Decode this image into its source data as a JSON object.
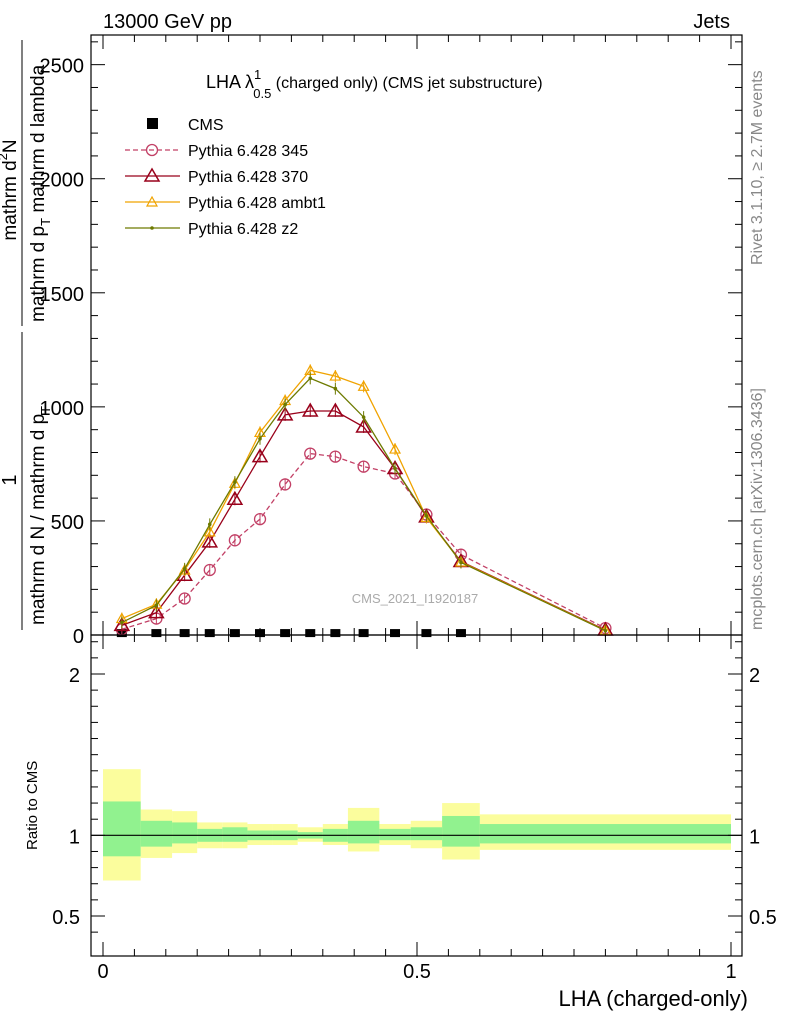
{
  "header": {
    "energy": "13000 GeV pp",
    "process": "Jets",
    "side_rivet": "Rivet 3.1.10, ≥ 2.7M events",
    "side_arxiv": "mcplots.cern.ch [arXiv:1306.3436]",
    "watermark": "CMS_2021_I1920187"
  },
  "title": {
    "prefix": "LHA λ",
    "sup": "1",
    "sub": "0.5",
    "suffix": " (charged only) (CMS jet substructure)"
  },
  "ylabel": {
    "frac1": "1",
    "frac1_den": "mathrm d N / mathrm d p",
    "frac1_den_sub": "T",
    "frac2_num": "mathrm d",
    "frac2_num_sup": "2",
    "frac2_num_tail": "N",
    "frac2_den": "mathrm d p",
    "frac2_den_sub": "T",
    "frac2_den_tail": " mathrm d lambda"
  },
  "ratio_ylabel": "Ratio to CMS",
  "xlabel": "LHA (charged-only)",
  "chart_data": [
    {
      "type": "line",
      "panel": "main",
      "xlim": [
        -0.03,
        1.02
      ],
      "ylim": [
        0,
        2630
      ],
      "yticks": [
        {
          "v": 0,
          "label": "0"
        },
        {
          "v": 500,
          "label": "500"
        },
        {
          "v": 1000,
          "label": "1000"
        },
        {
          "v": 1500,
          "label": "1500"
        },
        {
          "v": 2000,
          "label": "2000"
        },
        {
          "v": 2500,
          "label": "2500"
        }
      ],
      "x": [
        0.03,
        0.085,
        0.13,
        0.17,
        0.21,
        0.25,
        0.29,
        0.33,
        0.37,
        0.415,
        0.465,
        0.515,
        0.57,
        0.8
      ],
      "series": [
        {
          "name": "CMS",
          "color": "#000000",
          "style": "data",
          "x": [
            0.03,
            0.085,
            0.13,
            0.17,
            0.21,
            0.25,
            0.29,
            0.33,
            0.37,
            0.415,
            0.465,
            0.515,
            0.57
          ],
          "values": [
            4,
            4,
            4,
            4,
            4,
            4,
            4,
            4,
            4,
            4,
            4,
            4,
            4
          ]
        },
        {
          "name": "Pythia 6.428 345",
          "color": "#c24066",
          "style": "dashed",
          "marker": "circle",
          "values": [
            25,
            72,
            160,
            285,
            415,
            508,
            660,
            795,
            782,
            738,
            708,
            528,
            352,
            30
          ]
        },
        {
          "name": "Pythia 6.428 370",
          "color": "#99001a",
          "style": "solid",
          "marker": "triangle",
          "values": [
            42,
            98,
            262,
            408,
            595,
            782,
            965,
            982,
            982,
            912,
            730,
            518,
            322,
            22
          ]
        },
        {
          "name": "Pythia 6.428 ambt1",
          "color": "#f0a300",
          "style": "solid",
          "marker": "triangle-small",
          "values": [
            72,
            135,
            285,
            452,
            665,
            888,
            1028,
            1160,
            1135,
            1090,
            815,
            515,
            320,
            20
          ]
        },
        {
          "name": "Pythia 6.428 z2",
          "color": "#6d7a00",
          "style": "solid",
          "marker": "dot",
          "values": [
            55,
            130,
            290,
            485,
            670,
            860,
            1010,
            1125,
            1080,
            955,
            730,
            522,
            318,
            19
          ]
        }
      ]
    },
    {
      "type": "area",
      "panel": "ratio",
      "xlim": [
        -0.03,
        1.02
      ],
      "ylim": [
        0.33,
        2.25
      ],
      "yticks": [
        {
          "v": 0.5,
          "label": "0.5"
        },
        {
          "v": 1,
          "label": "1"
        },
        {
          "v": 2,
          "label": "2"
        }
      ],
      "xticks": [
        {
          "v": 0,
          "label": "0"
        },
        {
          "v": 0.5,
          "label": "0.5"
        },
        {
          "v": 1,
          "label": "1"
        }
      ],
      "bins": [
        {
          "x0": 0.0,
          "x1": 0.06,
          "green": [
            0.87,
            1.21
          ],
          "yellow": [
            0.72,
            1.41
          ]
        },
        {
          "x0": 0.06,
          "x1": 0.11,
          "green": [
            0.93,
            1.09
          ],
          "yellow": [
            0.86,
            1.16
          ]
        },
        {
          "x0": 0.11,
          "x1": 0.15,
          "green": [
            0.95,
            1.08
          ],
          "yellow": [
            0.89,
            1.15
          ]
        },
        {
          "x0": 0.15,
          "x1": 0.19,
          "green": [
            0.96,
            1.04
          ],
          "yellow": [
            0.92,
            1.08
          ]
        },
        {
          "x0": 0.19,
          "x1": 0.23,
          "green": [
            0.96,
            1.05
          ],
          "yellow": [
            0.92,
            1.08
          ]
        },
        {
          "x0": 0.23,
          "x1": 0.27,
          "green": [
            0.97,
            1.03
          ],
          "yellow": [
            0.94,
            1.07
          ]
        },
        {
          "x0": 0.27,
          "x1": 0.31,
          "green": [
            0.97,
            1.03
          ],
          "yellow": [
            0.94,
            1.07
          ]
        },
        {
          "x0": 0.31,
          "x1": 0.35,
          "green": [
            0.98,
            1.02
          ],
          "yellow": [
            0.96,
            1.05
          ]
        },
        {
          "x0": 0.35,
          "x1": 0.39,
          "green": [
            0.96,
            1.04
          ],
          "yellow": [
            0.94,
            1.07
          ]
        },
        {
          "x0": 0.39,
          "x1": 0.44,
          "green": [
            0.95,
            1.09
          ],
          "yellow": [
            0.9,
            1.17
          ]
        },
        {
          "x0": 0.44,
          "x1": 0.49,
          "green": [
            0.97,
            1.04
          ],
          "yellow": [
            0.94,
            1.07
          ]
        },
        {
          "x0": 0.49,
          "x1": 0.54,
          "green": [
            0.97,
            1.05
          ],
          "yellow": [
            0.92,
            1.09
          ]
        },
        {
          "x0": 0.54,
          "x1": 0.6,
          "green": [
            0.93,
            1.12
          ],
          "yellow": [
            0.85,
            1.2
          ]
        },
        {
          "x0": 0.6,
          "x1": 1.0,
          "green": [
            0.95,
            1.07
          ],
          "yellow": [
            0.91,
            1.13
          ]
        }
      ]
    }
  ],
  "colors": {
    "green": "#91f28f",
    "yellow": "#fbfd9d"
  }
}
